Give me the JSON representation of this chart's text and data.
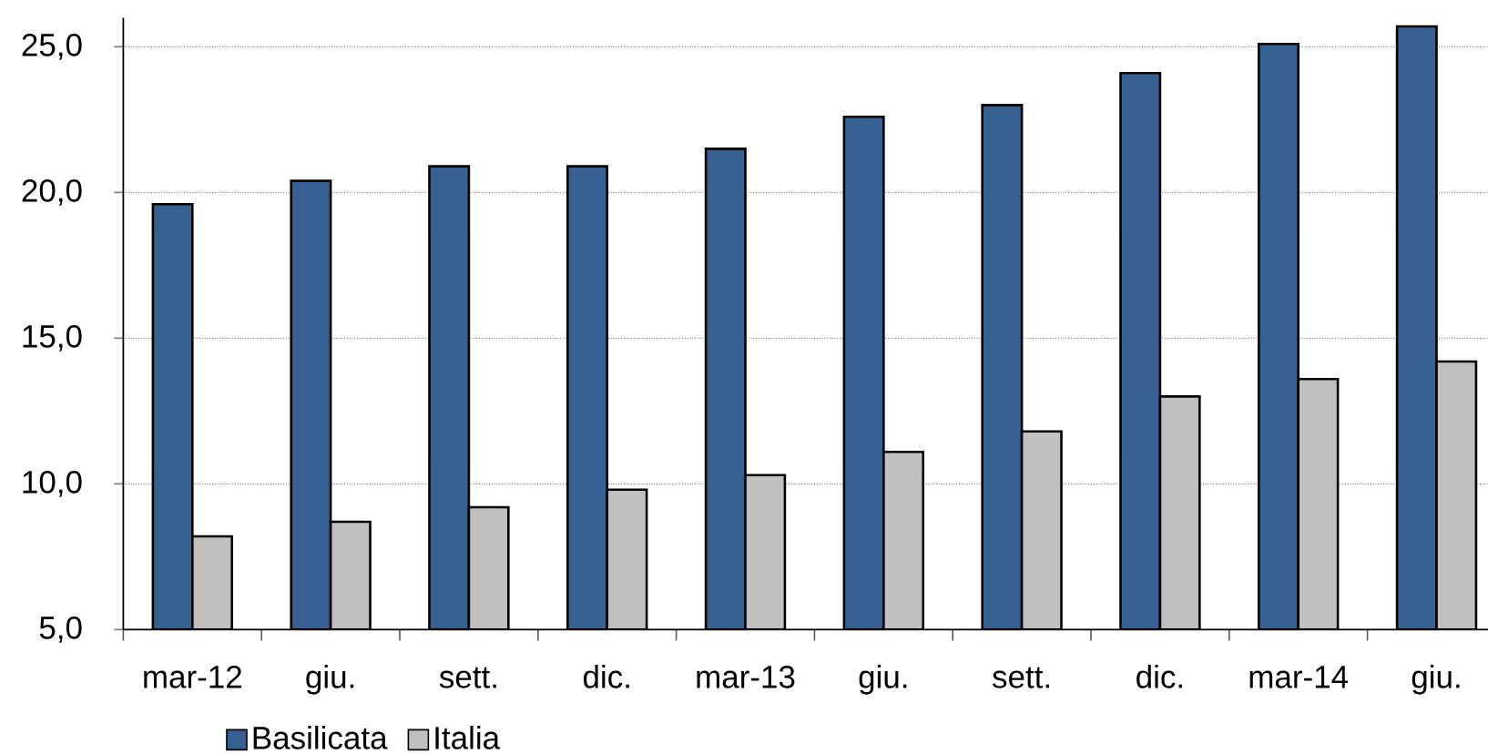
{
  "chart_data": {
    "type": "bar",
    "categories": [
      "mar-12",
      "giu.",
      "sett.",
      "dic.",
      "mar-13",
      "giu.",
      "sett.",
      "dic.",
      "mar-14",
      "giu."
    ],
    "series": [
      {
        "name": "Basilicata",
        "color": "#366092",
        "values": [
          19.6,
          20.4,
          20.9,
          20.9,
          21.5,
          22.6,
          23.0,
          24.1,
          25.1,
          25.7
        ]
      },
      {
        "name": "Italia",
        "color": "#c0c0c0",
        "values": [
          8.2,
          8.7,
          9.2,
          9.8,
          10.3,
          11.1,
          11.8,
          13.0,
          13.6,
          14.2
        ]
      }
    ],
    "ylim": [
      5,
      26
    ],
    "yticks": [
      {
        "value": 5,
        "label": "5,0"
      },
      {
        "value": 10,
        "label": "10,0"
      },
      {
        "value": 15,
        "label": "15,0"
      },
      {
        "value": 20,
        "label": "20,0"
      },
      {
        "value": 25,
        "label": "25,0"
      }
    ],
    "grid": "y",
    "legend": "bottom"
  }
}
